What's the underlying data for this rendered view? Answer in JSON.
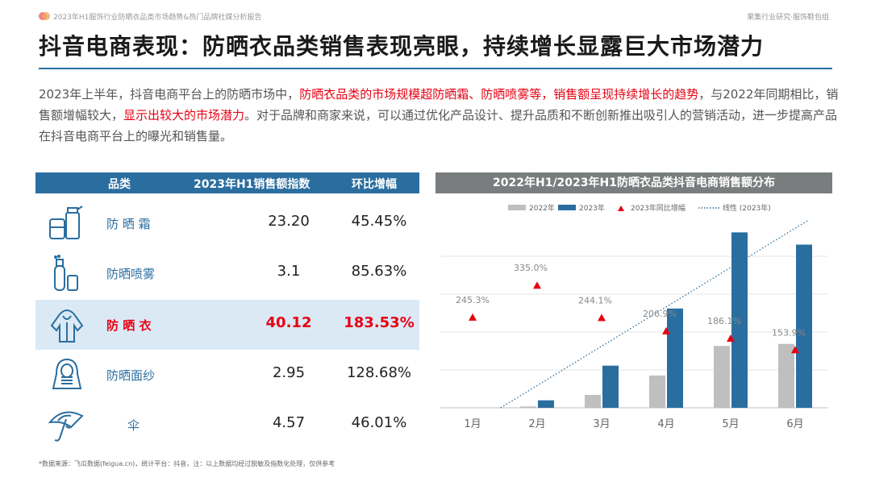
{
  "header": {
    "report_title": "2023年H1服饰行业防晒衣品类市场趋势&热门品牌社媒分析报告",
    "org": "果集行业研究·服饰鞋包组"
  },
  "page_title": "抖音电商表现：防晒衣品类销售表现亮眼，持续增长显露巨大市场潜力",
  "intro": {
    "p1": "2023年上半年，抖音电商平台上的防晒市场中，",
    "h1": "防晒衣品类的市场规模超防晒霜、防晒喷雾等，销售额呈现持续增长的趋势",
    "p2": "，与2022年同期相比，销售额增幅较大，",
    "h2": "显示出较大的市场潜力",
    "p3": "。对于品牌和商家来说，可以通过优化产品设计、提升品质和不断创新推出吸引人的营销活动，进一步提高产品在抖音电商平台上的曝光和销售量。"
  },
  "table": {
    "headers": [
      "品类",
      "2023年H1销售额指数",
      "环比增幅"
    ],
    "rows": [
      {
        "icon": "sunscreen-cream-icon",
        "category": "防 晒 霜",
        "value": "23.20",
        "growth": "45.45%"
      },
      {
        "icon": "sunscreen-spray-icon",
        "category": "防晒喷雾",
        "value": "3.1",
        "growth": "85.63%"
      },
      {
        "icon": "sun-protective-clothing-icon",
        "category": "防 晒 衣",
        "value": "40.12",
        "growth": "183.53%"
      },
      {
        "icon": "sun-veil-icon",
        "category": "防晒面纱",
        "value": "2.95",
        "growth": "128.68%"
      },
      {
        "icon": "umbrella-icon",
        "category": "伞",
        "value": "4.57",
        "growth": "46.01%"
      }
    ]
  },
  "chart_data": {
    "type": "bar",
    "title": "2022年H1/2023年H1防晒衣品类抖音电商销售额分布",
    "categories": [
      "1月",
      "2月",
      "3月",
      "4月",
      "5月",
      "6月"
    ],
    "series": [
      {
        "name": "2022年",
        "values": [
          0,
          0.4,
          3.8,
          9.5,
          18.2,
          18.8
        ],
        "color": "#bfbfbf"
      },
      {
        "name": "2023年",
        "values": [
          0,
          2.2,
          12.4,
          29.2,
          51.6,
          48.0
        ],
        "color": "#2a6ea0"
      }
    ],
    "yoy_growth": {
      "name": "2023年同比增幅",
      "labels": [
        "245.3%",
        "335.0%",
        "244.1%",
        "206.9%",
        "186.1%",
        "153.9%"
      ],
      "values": [
        245.3,
        335.0,
        244.1,
        206.9,
        186.1,
        153.9
      ],
      "color": "#e60012"
    },
    "trendline": {
      "name": "线性 (2023年)",
      "color": "#2a6ea0"
    },
    "ylim": [
      0,
      55
    ],
    "legend_position": "top",
    "grid": true
  },
  "footnote": "*数据来源：飞瓜数据(feigua.cn)，统计平台：抖音，注：以上数据均经过脱敏及指数化处理，仅供参考"
}
